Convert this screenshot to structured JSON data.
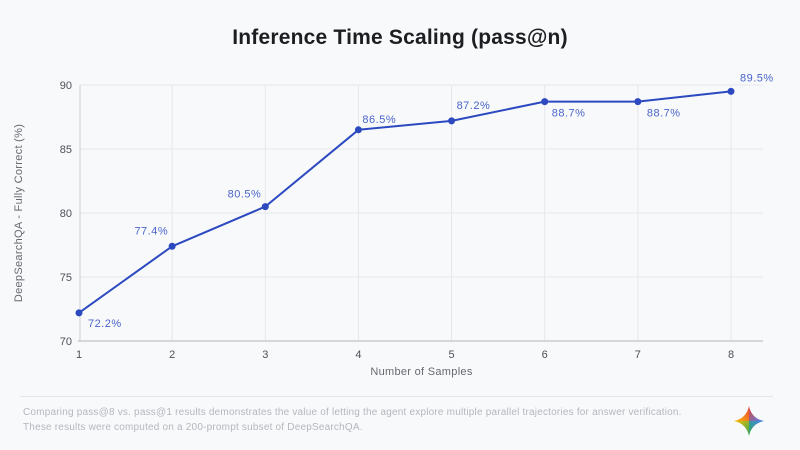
{
  "title": "Inference Time Scaling (pass@n)",
  "chart_data": {
    "type": "line",
    "title": "Inference Time Scaling (pass@n)",
    "x": [
      1,
      2,
      3,
      4,
      5,
      6,
      7,
      8
    ],
    "values": [
      72.2,
      77.4,
      80.5,
      86.5,
      87.2,
      88.7,
      88.7,
      89.5
    ],
    "point_labels": [
      "72.2%",
      "77.4%",
      "80.5%",
      "86.5%",
      "87.2%",
      "88.7%",
      "88.7%",
      "89.5%"
    ],
    "xlabel": "Number of Samples",
    "ylabel": "DeepSearchQA - Fully Correct (%)",
    "ylim": [
      70,
      90
    ],
    "yticks": [
      70,
      75,
      80,
      85,
      90
    ],
    "xticks": [
      1,
      2,
      3,
      4,
      5,
      6,
      7,
      8
    ],
    "grid": true,
    "legend": false
  },
  "colors": {
    "line": "#2c49c0",
    "marker": "#2c49c0",
    "point_label": "#4a64cb",
    "grid": "#e5e7eb",
    "axis_line": "#b2b5bb",
    "y_axis_line": "#ccced3",
    "tick_text": "#4c5157",
    "axis_title_text": "#66696e",
    "background": "#f8f9fb",
    "logo_red": "#ea4335",
    "logo_blue": "#4285f4",
    "logo_green": "#34a853",
    "logo_yellow": "#fbbc04"
  },
  "footer": {
    "line1": "Comparing pass@8 vs. pass@1 results demonstrates the value of letting the agent explore multiple parallel trajectories for answer verification.",
    "line2": "These results were computed on a 200-prompt subset of DeepSearchQA."
  }
}
